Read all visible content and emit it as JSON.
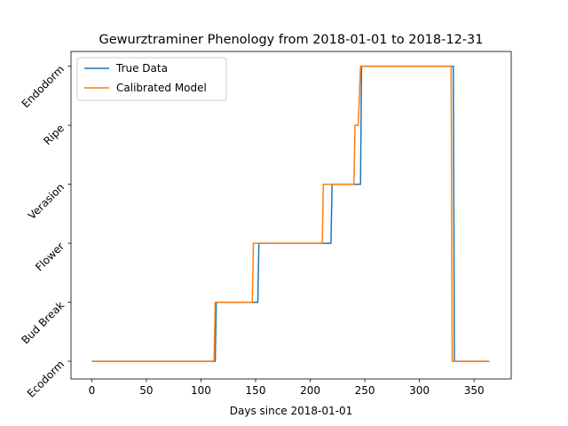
{
  "chart_data": {
    "type": "line",
    "title": "Gewurztraminer Phenology from 2018-01-01 to 2018-12-31",
    "xlabel": "Days since 2018-01-01",
    "ylabel": "",
    "xlim": [
      -19,
      384
    ],
    "ylim": [
      -0.3,
      5.25
    ],
    "x_ticks": [
      0,
      50,
      100,
      150,
      200,
      250,
      300,
      350
    ],
    "y_categories": [
      "Ecodorm",
      "Bud Break",
      "Flower",
      "Verasion",
      "Ripe",
      "Endodorm"
    ],
    "grid": false,
    "legend_position": "upper-left",
    "series": [
      {
        "name": "True Data",
        "color": "#1f77b4",
        "x": [
          0,
          113,
          114,
          152,
          153,
          219,
          220,
          246,
          247,
          331,
          332,
          364
        ],
        "y": [
          0,
          0,
          1,
          1,
          2,
          2,
          3,
          3,
          5,
          5,
          0,
          0
        ]
      },
      {
        "name": "Calibrated Model",
        "color": "#ff7f0e",
        "x": [
          0,
          112,
          113,
          147,
          148,
          211,
          212,
          240,
          241,
          244,
          246,
          329,
          330,
          364
        ],
        "y": [
          0,
          0,
          1,
          1,
          2,
          2,
          3,
          3,
          4,
          4,
          5,
          5,
          0,
          0
        ]
      }
    ]
  }
}
